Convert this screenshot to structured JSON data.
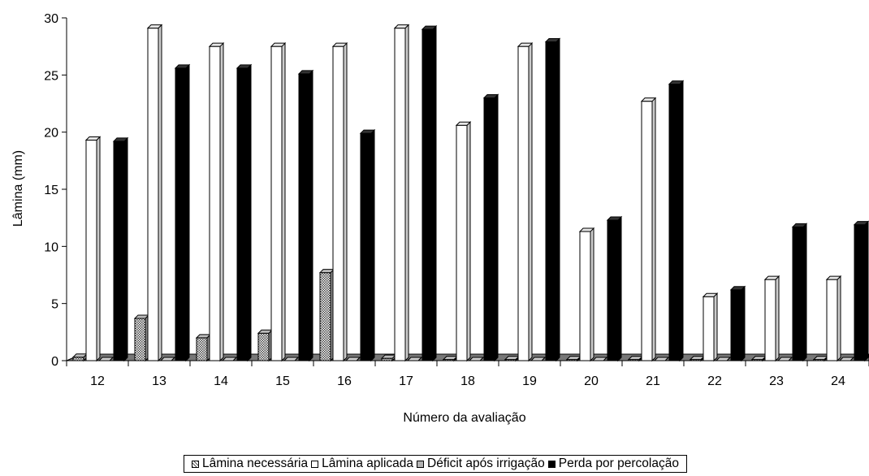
{
  "chart_data": {
    "type": "bar",
    "style": "3d-clustered",
    "categories": [
      "12",
      "13",
      "14",
      "15",
      "16",
      "17",
      "18",
      "19",
      "20",
      "21",
      "22",
      "23",
      "24"
    ],
    "series": [
      {
        "name": "Lâmina necessária",
        "fill": "pattern",
        "values": [
          0.3,
          3.7,
          2.0,
          2.4,
          7.7,
          0.2,
          0.1,
          0.1,
          0.1,
          0.1,
          0.1,
          0.1,
          0.1
        ]
      },
      {
        "name": "Lâmina aplicada",
        "fill": "#ffffff",
        "values": [
          19.3,
          29.1,
          27.5,
          27.5,
          27.5,
          29.1,
          20.6,
          27.5,
          11.3,
          22.7,
          5.6,
          7.1,
          7.1
        ]
      },
      {
        "name": "Déficit após irrigação",
        "fill": "#b3b3b3",
        "values": [
          0,
          0,
          0,
          0,
          0,
          0,
          0,
          0,
          0,
          0,
          0,
          0,
          0
        ]
      },
      {
        "name": "Perda por percolação",
        "fill": "#000000",
        "values": [
          19.2,
          25.6,
          25.6,
          25.1,
          19.9,
          29.0,
          23.0,
          27.9,
          12.3,
          24.2,
          6.2,
          11.7,
          11.9
        ]
      }
    ],
    "title": "",
    "xlabel": "Número da avaliação",
    "ylabel": "Lâmina (mm)",
    "ylim": [
      0,
      30
    ],
    "yticks": [
      0,
      5,
      10,
      15,
      20,
      25,
      30
    ],
    "grid": false,
    "legend_position": "bottom"
  }
}
